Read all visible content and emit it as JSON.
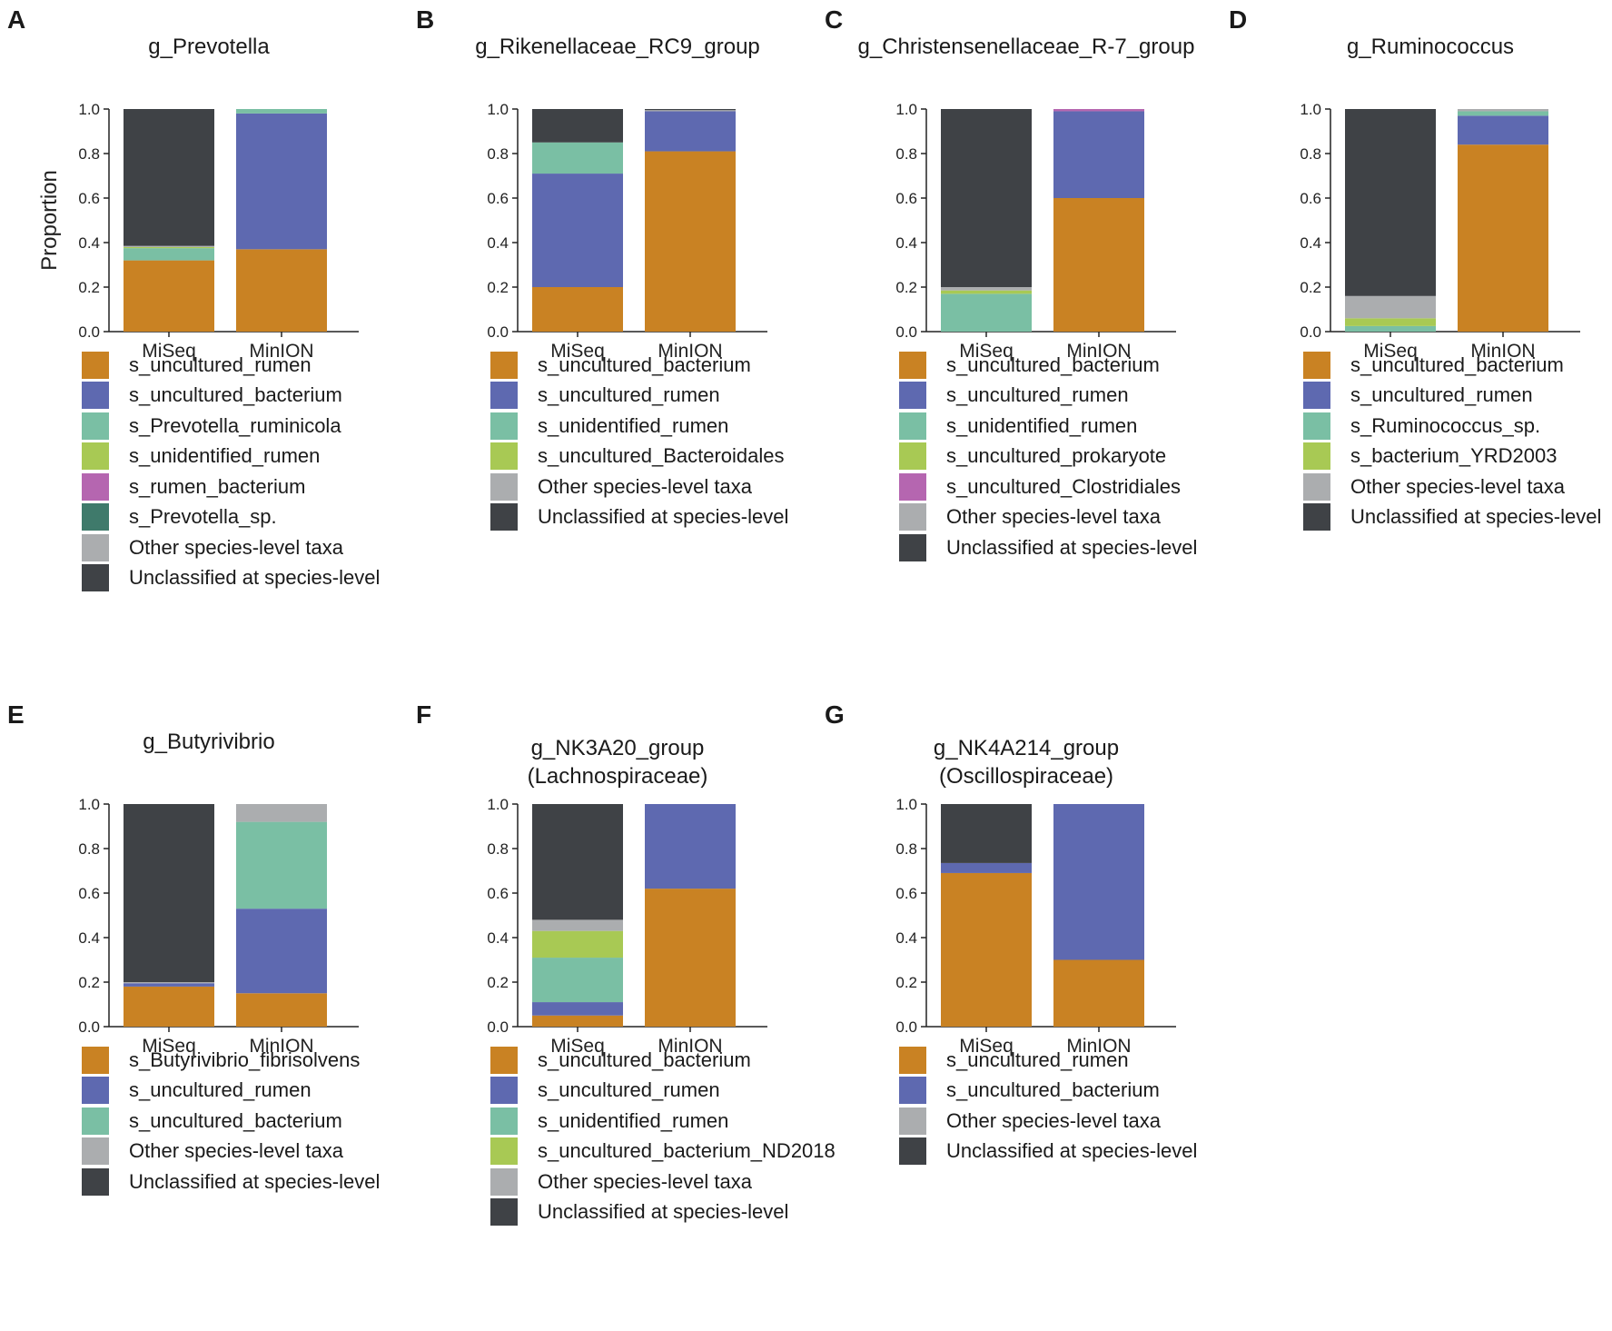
{
  "colors": {
    "orange": "#C98223",
    "blue": "#5E69B0",
    "teal": "#7ABFA4",
    "lime": "#A8C954",
    "magenta": "#B566B0",
    "darkteal": "#3F7A6B",
    "grey": "#ABADAF",
    "dark": "#3F4246"
  },
  "chart_data": [
    {
      "letter": "A",
      "title": "g_Prevotella",
      "type": "bar",
      "stacked": true,
      "ylabel": "Proportion",
      "ylim": [
        0,
        1
      ],
      "yticks": [
        "0.0",
        "0.2",
        "0.4",
        "0.6",
        "0.8",
        "1.0"
      ],
      "categories": [
        "MiSeq",
        "MinION"
      ],
      "series": [
        {
          "name": "s_uncultured_rumen",
          "color": "orange",
          "values": [
            0.32,
            0.37
          ]
        },
        {
          "name": "s_uncultured_bacterium",
          "color": "blue",
          "values": [
            0.0,
            0.61
          ]
        },
        {
          "name": "s_Prevotella_ruminicola",
          "color": "teal",
          "values": [
            0.055,
            0.02
          ]
        },
        {
          "name": "s_unidentified_rumen",
          "color": "lime",
          "values": [
            0.005,
            0.0
          ]
        },
        {
          "name": "s_rumen_bacterium",
          "color": "magenta",
          "values": [
            0.0,
            0.0
          ]
        },
        {
          "name": "s_Prevotella_sp.",
          "color": "darkteal",
          "values": [
            0.0,
            0.0
          ]
        },
        {
          "name": "Other species-level taxa",
          "color": "grey",
          "values": [
            0.005,
            0.0
          ]
        },
        {
          "name": "Unclassified at species-level",
          "color": "dark",
          "values": [
            0.615,
            0.0
          ]
        }
      ]
    },
    {
      "letter": "B",
      "title": "g_Rikenellaceae_RC9_group",
      "type": "bar",
      "stacked": true,
      "ylim": [
        0,
        1
      ],
      "yticks": [
        "0.0",
        "0.2",
        "0.4",
        "0.6",
        "0.8",
        "1.0"
      ],
      "categories": [
        "MiSeq",
        "MinION"
      ],
      "series": [
        {
          "name": "s_uncultured_bacterium",
          "color": "orange",
          "values": [
            0.2,
            0.81
          ]
        },
        {
          "name": "s_uncultured_rumen",
          "color": "blue",
          "values": [
            0.51,
            0.18
          ]
        },
        {
          "name": "s_unidentified_rumen",
          "color": "teal",
          "values": [
            0.14,
            0.0
          ]
        },
        {
          "name": "s_uncultured_Bacteroidales",
          "color": "lime",
          "values": [
            0.0,
            0.0
          ]
        },
        {
          "name": "Other species-level taxa",
          "color": "grey",
          "values": [
            0.0,
            0.005
          ]
        },
        {
          "name": "Unclassified at species-level",
          "color": "dark",
          "values": [
            0.15,
            0.005
          ]
        }
      ]
    },
    {
      "letter": "C",
      "title": "g_Christensenellaceae_R-7_group",
      "type": "bar",
      "stacked": true,
      "ylim": [
        0,
        1
      ],
      "yticks": [
        "0.0",
        "0.2",
        "0.4",
        "0.6",
        "0.8",
        "1.0"
      ],
      "categories": [
        "MiSeq",
        "MinION"
      ],
      "series": [
        {
          "name": "s_uncultured_bacterium",
          "color": "orange",
          "values": [
            0.0,
            0.6
          ]
        },
        {
          "name": "s_uncultured_rumen",
          "color": "blue",
          "values": [
            0.0,
            0.39
          ]
        },
        {
          "name": "s_unidentified_rumen",
          "color": "teal",
          "values": [
            0.17,
            0.0
          ]
        },
        {
          "name": "s_uncultured_prokaryote",
          "color": "lime",
          "values": [
            0.015,
            0.0
          ]
        },
        {
          "name": "s_uncultured_Clostridiales",
          "color": "magenta",
          "values": [
            0.0,
            0.01
          ]
        },
        {
          "name": "Other species-level taxa",
          "color": "grey",
          "values": [
            0.015,
            0.0
          ]
        },
        {
          "name": "Unclassified at species-level",
          "color": "dark",
          "values": [
            0.8,
            0.0
          ]
        }
      ]
    },
    {
      "letter": "D",
      "title": "g_Ruminococcus",
      "type": "bar",
      "stacked": true,
      "ylim": [
        0,
        1
      ],
      "yticks": [
        "0.0",
        "0.2",
        "0.4",
        "0.6",
        "0.8",
        "1.0"
      ],
      "categories": [
        "MiSeq",
        "MinION"
      ],
      "series": [
        {
          "name": "s_uncultured_bacterium",
          "color": "orange",
          "values": [
            0.0,
            0.84
          ]
        },
        {
          "name": "s_uncultured_rumen",
          "color": "blue",
          "values": [
            0.0,
            0.13
          ]
        },
        {
          "name": "s_Ruminococcus_sp.",
          "color": "teal",
          "values": [
            0.025,
            0.02
          ]
        },
        {
          "name": "s_bacterium_YRD2003",
          "color": "lime",
          "values": [
            0.035,
            0.0
          ]
        },
        {
          "name": "Other species-level taxa",
          "color": "grey",
          "values": [
            0.1,
            0.01
          ]
        },
        {
          "name": "Unclassified at species-level",
          "color": "dark",
          "values": [
            0.84,
            0.0
          ]
        }
      ]
    },
    {
      "letter": "E",
      "title": "g_Butyrivibrio",
      "type": "bar",
      "stacked": true,
      "ylim": [
        0,
        1
      ],
      "yticks": [
        "0.0",
        "0.2",
        "0.4",
        "0.6",
        "0.8",
        "1.0"
      ],
      "categories": [
        "MiSeq",
        "MinION"
      ],
      "series": [
        {
          "name": "s_Butyrivibrio_fibrisolvens",
          "color": "orange",
          "values": [
            0.18,
            0.15
          ]
        },
        {
          "name": "s_uncultured_rumen",
          "color": "blue",
          "values": [
            0.015,
            0.38
          ]
        },
        {
          "name": "s_uncultured_bacterium",
          "color": "teal",
          "values": [
            0.0,
            0.39
          ]
        },
        {
          "name": "Other species-level taxa",
          "color": "grey",
          "values": [
            0.005,
            0.08
          ]
        },
        {
          "name": "Unclassified at species-level",
          "color": "dark",
          "values": [
            0.8,
            0.0
          ]
        }
      ]
    },
    {
      "letter": "F",
      "title": "g_NK3A20_group\n(Lachnospiraceae)",
      "type": "bar",
      "stacked": true,
      "ylim": [
        0,
        1
      ],
      "yticks": [
        "0.0",
        "0.2",
        "0.4",
        "0.6",
        "0.8",
        "1.0"
      ],
      "categories": [
        "MiSeq",
        "MinION"
      ],
      "series": [
        {
          "name": "s_uncultured_bacterium",
          "color": "orange",
          "values": [
            0.05,
            0.62
          ]
        },
        {
          "name": "s_uncultured_rumen",
          "color": "blue",
          "values": [
            0.06,
            0.38
          ]
        },
        {
          "name": "s_unidentified_rumen",
          "color": "teal",
          "values": [
            0.2,
            0.0
          ]
        },
        {
          "name": "s_uncultured_bacterium_ND2018",
          "color": "lime",
          "values": [
            0.12,
            0.0
          ]
        },
        {
          "name": "Other species-level taxa",
          "color": "grey",
          "values": [
            0.05,
            0.0
          ]
        },
        {
          "name": "Unclassified at species-level",
          "color": "dark",
          "values": [
            0.52,
            0.0
          ]
        }
      ]
    },
    {
      "letter": "G",
      "title": "g_NK4A214_group\n(Oscillospiraceae)",
      "type": "bar",
      "stacked": true,
      "ylim": [
        0,
        1
      ],
      "yticks": [
        "0.0",
        "0.2",
        "0.4",
        "0.6",
        "0.8",
        "1.0"
      ],
      "categories": [
        "MiSeq",
        "MinION"
      ],
      "series": [
        {
          "name": "s_uncultured_rumen",
          "color": "orange",
          "values": [
            0.69,
            0.3
          ]
        },
        {
          "name": "s_uncultured_bacterium",
          "color": "blue",
          "values": [
            0.045,
            0.7
          ]
        },
        {
          "name": "Other species-level taxa",
          "color": "grey",
          "values": [
            0.0,
            0.0
          ]
        },
        {
          "name": "Unclassified at species-level",
          "color": "dark",
          "values": [
            0.265,
            0.0
          ]
        }
      ]
    }
  ]
}
